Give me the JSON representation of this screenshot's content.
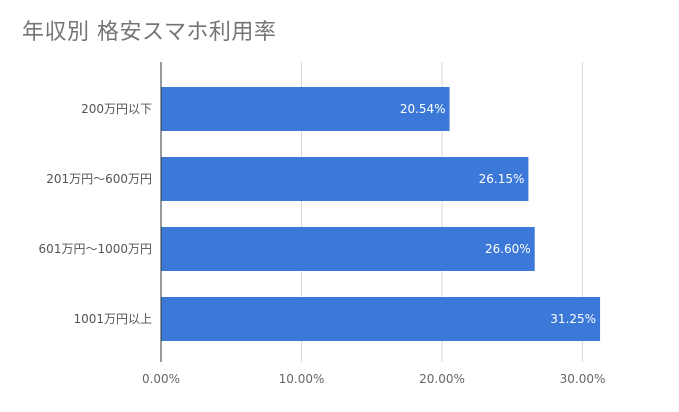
{
  "chart_data": {
    "type": "bar",
    "orientation": "horizontal",
    "title": "年収別 格安スマホ利用率",
    "categories": [
      "200万円以下",
      "201万円〜600万円",
      "601万円〜1000万円",
      "1001万円以上"
    ],
    "values": [
      20.54,
      26.15,
      26.6,
      31.25
    ],
    "data_labels": [
      "20.54%",
      "26.15%",
      "26.60%",
      "31.25%"
    ],
    "x_ticks": [
      0,
      10,
      20,
      30
    ],
    "x_tick_labels": [
      "0.00%",
      "10.00%",
      "20.00%",
      "30.00%"
    ],
    "xlim": [
      0,
      32.5
    ],
    "grid": true,
    "legend": "none",
    "bar_color": "#3c78d8",
    "xlabel": "",
    "ylabel": ""
  }
}
